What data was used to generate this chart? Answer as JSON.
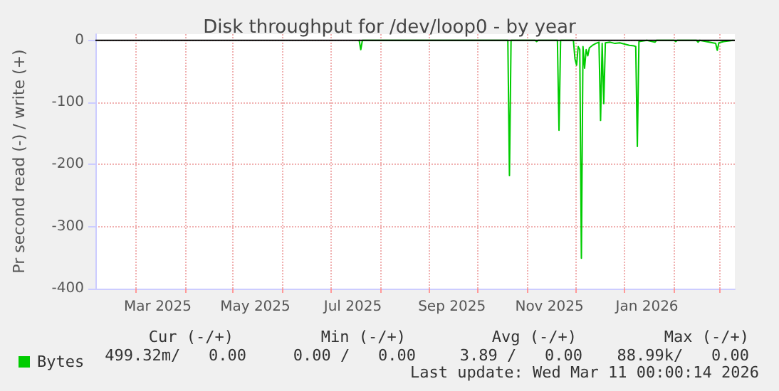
{
  "chart_data": {
    "type": "line",
    "title": "Disk throughput for /dev/loop0 - by year",
    "ylabel": "Pr second read (-) / write (+)",
    "xlim": [
      "2025-02-04",
      "2026-03-11"
    ],
    "xticks": [
      {
        "value": "2025-03-01",
        "label": null
      },
      {
        "value": "2025-04-01",
        "label": null
      },
      {
        "value": "2025-05-01",
        "label": null
      },
      {
        "value": "2025-06-01",
        "label": null
      },
      {
        "value": "2025-07-01",
        "label": null
      },
      {
        "value": "2025-08-01",
        "label": null
      },
      {
        "value": "2025-09-01",
        "label": null
      },
      {
        "value": "2025-10-01",
        "label": null
      },
      {
        "value": "2025-11-01",
        "label": null
      },
      {
        "value": "2025-12-01",
        "label": null
      },
      {
        "value": "2026-01-01",
        "label": null
      },
      {
        "value": "2026-02-01",
        "label": null
      },
      {
        "value": "2026-03-01",
        "label": null
      },
      {
        "value": "2025-03-15",
        "label": "Mar 2025"
      },
      {
        "value": "2025-05-15",
        "label": "May 2025"
      },
      {
        "value": "2025-07-15",
        "label": "Jul 2025"
      },
      {
        "value": "2025-09-15",
        "label": "Sep 2025"
      },
      {
        "value": "2025-11-15",
        "label": "Nov 2025"
      },
      {
        "value": "2026-01-15",
        "label": "Jan 2026"
      }
    ],
    "ylim": [
      -400,
      10
    ],
    "yticks": [
      -400,
      -300,
      -200,
      -100,
      0
    ],
    "grid": true,
    "legend": "bottom left",
    "marker": "none",
    "line_style": "solid",
    "ref_lines": [
      {
        "axis": "y",
        "value": 0,
        "color": "#000000",
        "line_style": "solid"
      }
    ],
    "series": [
      {
        "name": "Bytes",
        "color": "#00cc00",
        "x": [
          "2025-07-19",
          "2025-07-20",
          "2025-07-21",
          "2025-10-20",
          "2025-10-21",
          "2025-10-22",
          "2025-11-06",
          "2025-11-07",
          "2025-11-08",
          "2025-11-20",
          "2025-11-21",
          "2025-11-22",
          "2025-11-30",
          "2025-12-01",
          "2025-12-02",
          "2025-12-03",
          "2025-12-04",
          "2025-12-05",
          "2025-12-06",
          "2025-12-07",
          "2025-12-08",
          "2025-12-09",
          "2025-12-10",
          "2025-12-12",
          "2025-12-14",
          "2025-12-16",
          "2025-12-17",
          "2025-12-18",
          "2025-12-19",
          "2025-12-20",
          "2025-12-23",
          "2025-12-26",
          "2025-12-29",
          "2026-01-01",
          "2026-01-04",
          "2026-01-07",
          "2026-01-08",
          "2026-01-09",
          "2026-01-10",
          "2026-01-15",
          "2026-01-20",
          "2026-01-21",
          "2026-02-01",
          "2026-02-02",
          "2026-02-03",
          "2026-02-15",
          "2026-02-16",
          "2026-02-17",
          "2026-02-27",
          "2026-02-28",
          "2026-03-01",
          "2026-03-04",
          "2026-03-10"
        ],
        "values": [
          0,
          -15,
          0,
          0,
          -218,
          0,
          0,
          -2,
          0,
          0,
          -145,
          0,
          0,
          -30,
          -40,
          -10,
          -15,
          -351,
          -10,
          -45,
          -15,
          -25,
          -12,
          -8,
          -5,
          -3,
          -129,
          -5,
          -102,
          -4,
          -3,
          -5,
          -4,
          -6,
          -8,
          -9,
          -10,
          -171,
          -2,
          0,
          -3,
          0,
          0,
          -2,
          0,
          0,
          -3,
          0,
          -5,
          -16,
          -4,
          -2,
          0
        ]
      }
    ],
    "annotations": [
      "Cur (-/+)",
      "Min (-/+)",
      "Avg (-/+)",
      "Max (-/+)",
      "499.32m/   0.00",
      "0.00 /   0.00",
      "3.89 /   0.00",
      "88.99k/   0.00",
      "Last update: Wed Mar 11 00:00:14 2026"
    ]
  }
}
